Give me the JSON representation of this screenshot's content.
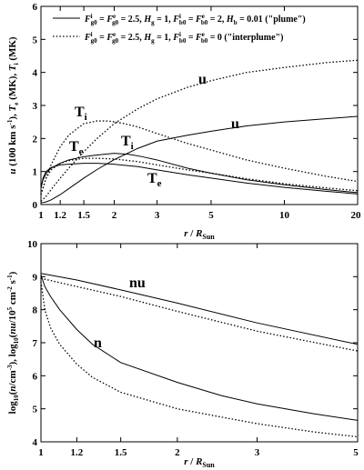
{
  "chart_data": [
    {
      "type": "line",
      "xscale": "log",
      "xlim": [
        1,
        20
      ],
      "ylim": [
        0,
        6
      ],
      "xticks": [
        1,
        1.2,
        1.5,
        2,
        3,
        5,
        10,
        20
      ],
      "xtick_labels": [
        "1",
        "1.2",
        "1.5",
        "2",
        "3",
        "5",
        "10",
        "20"
      ],
      "yticks": [
        0,
        1,
        2,
        3,
        4,
        5,
        6
      ],
      "xlabel": "r / R_Sun",
      "ylabel": "u (100 km s⁻¹), Tₑ (MK), Tᵢ (MK)",
      "legend": {
        "position": "top",
        "entries": [
          {
            "style": "solid",
            "text": "Fⁱg0 = Fᵉg0 = 2.5, Hg = 1, Fⁱb0 = Fᵉb0 = 2, Hb = 0.01 (\"plume\")"
          },
          {
            "style": "dotted",
            "text": "Fⁱg0 = Fᵉg0 = 2.5, Hg = 1, Fⁱb0 = Fᵉb0 = 0 (\"interplume\")"
          }
        ]
      },
      "series": [
        {
          "style": "solid",
          "label": "u",
          "x": [
            1,
            1.05,
            1.1,
            1.2,
            1.3,
            1.5,
            1.7,
            2,
            2.5,
            3,
            4,
            5,
            7,
            10,
            15,
            20
          ],
          "y": [
            0.05,
            0.08,
            0.14,
            0.3,
            0.48,
            0.8,
            1.06,
            1.36,
            1.7,
            1.92,
            2.1,
            2.22,
            2.38,
            2.5,
            2.6,
            2.67
          ]
        },
        {
          "style": "solid",
          "label": "Ti",
          "x": [
            1,
            1.02,
            1.05,
            1.1,
            1.2,
            1.3,
            1.5,
            1.7,
            2,
            2.3,
            2.6,
            3,
            4,
            5,
            7,
            10,
            15,
            20
          ],
          "y": [
            0.5,
            0.75,
            0.95,
            1.1,
            1.25,
            1.35,
            1.45,
            1.5,
            1.55,
            1.52,
            1.45,
            1.35,
            1.1,
            0.95,
            0.75,
            0.6,
            0.45,
            0.36
          ]
        },
        {
          "style": "solid",
          "label": "Te",
          "x": [
            1,
            1.02,
            1.05,
            1.1,
            1.2,
            1.3,
            1.5,
            1.7,
            2,
            2.5,
            3,
            4,
            5,
            7,
            10,
            15,
            20
          ],
          "y": [
            0.5,
            0.8,
            1.0,
            1.12,
            1.2,
            1.22,
            1.25,
            1.25,
            1.22,
            1.15,
            1.05,
            0.9,
            0.8,
            0.65,
            0.52,
            0.4,
            0.32
          ]
        },
        {
          "style": "dotted",
          "label": "u",
          "x": [
            1,
            1.05,
            1.1,
            1.2,
            1.3,
            1.5,
            1.7,
            2,
            2.5,
            3,
            4,
            5,
            7,
            10,
            15,
            20
          ],
          "y": [
            0.1,
            0.25,
            0.45,
            0.8,
            1.1,
            1.6,
            2.0,
            2.45,
            2.9,
            3.2,
            3.55,
            3.75,
            4.0,
            4.15,
            4.3,
            4.37
          ]
        },
        {
          "style": "dotted",
          "label": "Ti",
          "x": [
            1,
            1.05,
            1.1,
            1.2,
            1.3,
            1.5,
            1.7,
            1.9,
            2.2,
            2.5,
            3,
            4,
            5,
            7,
            10,
            15,
            20
          ],
          "y": [
            0.3,
            0.8,
            1.2,
            1.75,
            2.1,
            2.45,
            2.53,
            2.53,
            2.45,
            2.35,
            2.15,
            1.85,
            1.65,
            1.35,
            1.1,
            0.85,
            0.7
          ]
        },
        {
          "style": "dotted",
          "label": "Te",
          "x": [
            1,
            1.05,
            1.1,
            1.2,
            1.3,
            1.5,
            1.7,
            2,
            2.5,
            3,
            4,
            5,
            7,
            10,
            15,
            20
          ],
          "y": [
            0.3,
            0.8,
            1.05,
            1.25,
            1.33,
            1.4,
            1.4,
            1.38,
            1.3,
            1.2,
            1.05,
            0.95,
            0.78,
            0.63,
            0.5,
            0.42
          ]
        }
      ],
      "annotations": [
        "u",
        "Tᵢ",
        "Tₑ",
        "u",
        "Tᵢ",
        "Tₑ"
      ]
    },
    {
      "type": "line",
      "xscale": "log",
      "xlim": [
        1,
        5
      ],
      "ylim": [
        4,
        10
      ],
      "xticks": [
        1,
        1.2,
        1.5,
        2,
        3,
        5
      ],
      "xtick_labels": [
        "1",
        "1.2",
        "1.5",
        "2",
        "3",
        "5"
      ],
      "yticks": [
        4,
        5,
        6,
        7,
        8,
        9,
        10
      ],
      "xlabel": "r / R_Sun",
      "ylabel": "log₁₀(n/cm⁻³), log₁₀(nu/10⁵ cm⁻² s⁻¹)",
      "series": [
        {
          "style": "solid",
          "label": "nu",
          "x": [
            1,
            1.2,
            1.5,
            2,
            3,
            5
          ],
          "y": [
            9.1,
            8.9,
            8.6,
            8.2,
            7.6,
            6.95
          ]
        },
        {
          "style": "dotted",
          "label": "nu",
          "x": [
            1,
            1.2,
            1.5,
            2,
            3,
            5
          ],
          "y": [
            8.95,
            8.7,
            8.4,
            7.95,
            7.35,
            6.75
          ]
        },
        {
          "style": "solid",
          "label": "n",
          "x": [
            1,
            1.02,
            1.05,
            1.1,
            1.2,
            1.3,
            1.5,
            2,
            2.5,
            3,
            4,
            5
          ],
          "y": [
            9.05,
            8.7,
            8.4,
            8.0,
            7.4,
            6.95,
            6.4,
            5.8,
            5.4,
            5.15,
            4.85,
            4.65
          ]
        },
        {
          "style": "dotted",
          "label": "n",
          "x": [
            1,
            1.02,
            1.05,
            1.1,
            1.2,
            1.3,
            1.5,
            2,
            2.5,
            3,
            4,
            5
          ],
          "y": [
            8.85,
            8.0,
            7.45,
            6.95,
            6.35,
            5.95,
            5.5,
            5.0,
            4.75,
            4.55,
            4.3,
            4.15
          ]
        }
      ],
      "annotations": [
        "nu",
        "n"
      ]
    }
  ]
}
